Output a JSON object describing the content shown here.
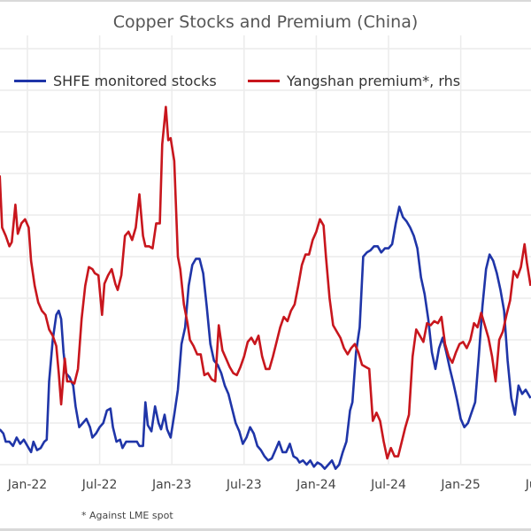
{
  "chart_data": {
    "type": "line",
    "title": "Copper Stocks and Premium (China)",
    "xlabel": "",
    "ylabel": "",
    "y2label": "",
    "y_tick_labels_visible": false,
    "y_units_note": "No y-axis tick labels shown; values are expressed in gridline units (0 = bottom gridline, 10 = top gridline).",
    "ylim": [
      0,
      10
    ],
    "y2lim": [
      0,
      10
    ],
    "x_unit": "months since Jan-2022",
    "xlim": [
      -2.3,
      41.8
    ],
    "x_ticks": [
      {
        "month": 0,
        "label": "Jan-22"
      },
      {
        "month": 6,
        "label": "Jul-22"
      },
      {
        "month": 12,
        "label": "Jan-23"
      },
      {
        "month": 18,
        "label": "Jul-23"
      },
      {
        "month": 24,
        "label": "Jan-24"
      },
      {
        "month": 30,
        "label": "Jul-24"
      },
      {
        "month": 36,
        "label": "Jan-25"
      },
      {
        "month": 42,
        "label": "Jul"
      }
    ],
    "grid": true,
    "legend_position": "top",
    "series": [
      {
        "name": "SHFE monitored stocks",
        "axis": "left",
        "color": "#1f35a8",
        "points": [
          [
            -2.3,
            0.85
          ],
          [
            -2.0,
            0.75
          ],
          [
            -1.8,
            0.55
          ],
          [
            -1.5,
            0.55
          ],
          [
            -1.2,
            0.45
          ],
          [
            -0.9,
            0.65
          ],
          [
            -0.6,
            0.5
          ],
          [
            -0.3,
            0.6
          ],
          [
            0.0,
            0.45
          ],
          [
            0.3,
            0.3
          ],
          [
            0.5,
            0.55
          ],
          [
            0.8,
            0.35
          ],
          [
            1.1,
            0.4
          ],
          [
            1.4,
            0.55
          ],
          [
            1.6,
            0.6
          ],
          [
            1.8,
            2.0
          ],
          [
            2.1,
            3.0
          ],
          [
            2.4,
            3.6
          ],
          [
            2.6,
            3.7
          ],
          [
            2.8,
            3.5
          ],
          [
            3.0,
            2.7
          ],
          [
            3.2,
            2.2
          ],
          [
            3.5,
            2.1
          ],
          [
            3.8,
            1.9
          ],
          [
            4.0,
            1.4
          ],
          [
            4.3,
            0.9
          ],
          [
            4.6,
            1.0
          ],
          [
            4.9,
            1.1
          ],
          [
            5.2,
            0.9
          ],
          [
            5.4,
            0.65
          ],
          [
            5.7,
            0.75
          ],
          [
            6.0,
            0.9
          ],
          [
            6.3,
            1.0
          ],
          [
            6.6,
            1.3
          ],
          [
            6.9,
            1.35
          ],
          [
            7.1,
            0.9
          ],
          [
            7.4,
            0.55
          ],
          [
            7.7,
            0.6
          ],
          [
            7.9,
            0.4
          ],
          [
            8.2,
            0.55
          ],
          [
            8.5,
            0.55
          ],
          [
            8.8,
            0.55
          ],
          [
            9.1,
            0.55
          ],
          [
            9.3,
            0.45
          ],
          [
            9.6,
            0.45
          ],
          [
            9.8,
            1.5
          ],
          [
            10.0,
            0.95
          ],
          [
            10.3,
            0.8
          ],
          [
            10.6,
            1.4
          ],
          [
            10.9,
            1.0
          ],
          [
            11.1,
            0.85
          ],
          [
            11.4,
            1.2
          ],
          [
            11.6,
            0.85
          ],
          [
            11.9,
            0.65
          ],
          [
            12.2,
            1.2
          ],
          [
            12.5,
            1.8
          ],
          [
            12.8,
            2.9
          ],
          [
            13.1,
            3.3
          ],
          [
            13.4,
            4.3
          ],
          [
            13.7,
            4.8
          ],
          [
            14.0,
            4.95
          ],
          [
            14.3,
            4.95
          ],
          [
            14.6,
            4.6
          ],
          [
            14.9,
            3.8
          ],
          [
            15.2,
            2.9
          ],
          [
            15.5,
            2.5
          ],
          [
            15.8,
            2.4
          ],
          [
            16.1,
            2.2
          ],
          [
            16.4,
            1.9
          ],
          [
            16.7,
            1.7
          ],
          [
            17.0,
            1.35
          ],
          [
            17.3,
            1.0
          ],
          [
            17.6,
            0.8
          ],
          [
            17.9,
            0.5
          ],
          [
            18.2,
            0.65
          ],
          [
            18.5,
            0.9
          ],
          [
            18.8,
            0.75
          ],
          [
            19.1,
            0.45
          ],
          [
            19.4,
            0.35
          ],
          [
            19.7,
            0.2
          ],
          [
            20.0,
            0.1
          ],
          [
            20.3,
            0.15
          ],
          [
            20.6,
            0.35
          ],
          [
            20.9,
            0.55
          ],
          [
            21.2,
            0.3
          ],
          [
            21.5,
            0.3
          ],
          [
            21.8,
            0.5
          ],
          [
            22.1,
            0.2
          ],
          [
            22.4,
            0.15
          ],
          [
            22.6,
            0.05
          ],
          [
            22.9,
            0.1
          ],
          [
            23.2,
            0.0
          ],
          [
            23.5,
            0.1
          ],
          [
            23.8,
            -0.05
          ],
          [
            24.1,
            0.05
          ],
          [
            24.4,
            0.0
          ],
          [
            24.7,
            -0.1
          ],
          [
            25.0,
            0.0
          ],
          [
            25.3,
            0.1
          ],
          [
            25.6,
            -0.1
          ],
          [
            25.9,
            0.0
          ],
          [
            26.2,
            0.3
          ],
          [
            26.5,
            0.55
          ],
          [
            26.8,
            1.3
          ],
          [
            27.0,
            1.5
          ],
          [
            27.3,
            2.7
          ],
          [
            27.6,
            3.3
          ],
          [
            27.9,
            5.0
          ],
          [
            28.2,
            5.1
          ],
          [
            28.5,
            5.15
          ],
          [
            28.8,
            5.25
          ],
          [
            29.1,
            5.25
          ],
          [
            29.4,
            5.1
          ],
          [
            29.7,
            5.2
          ],
          [
            30.0,
            5.2
          ],
          [
            30.3,
            5.3
          ],
          [
            30.6,
            5.8
          ],
          [
            30.9,
            6.2
          ],
          [
            31.2,
            5.95
          ],
          [
            31.5,
            5.85
          ],
          [
            31.8,
            5.7
          ],
          [
            32.1,
            5.5
          ],
          [
            32.4,
            5.2
          ],
          [
            32.7,
            4.5
          ],
          [
            33.0,
            4.1
          ],
          [
            33.3,
            3.5
          ],
          [
            33.6,
            2.7
          ],
          [
            33.9,
            2.3
          ],
          [
            34.2,
            2.8
          ],
          [
            34.5,
            3.05
          ],
          [
            34.8,
            2.7
          ],
          [
            35.1,
            2.3
          ],
          [
            35.4,
            1.95
          ],
          [
            35.7,
            1.55
          ],
          [
            36.0,
            1.1
          ],
          [
            36.3,
            0.9
          ],
          [
            36.6,
            1.0
          ],
          [
            36.9,
            1.25
          ],
          [
            37.2,
            1.5
          ],
          [
            37.5,
            2.6
          ],
          [
            37.8,
            3.8
          ],
          [
            38.1,
            4.7
          ],
          [
            38.4,
            5.05
          ],
          [
            38.7,
            4.9
          ],
          [
            39.0,
            4.6
          ],
          [
            39.3,
            4.2
          ],
          [
            39.6,
            3.7
          ],
          [
            39.9,
            2.5
          ],
          [
            40.2,
            1.6
          ],
          [
            40.5,
            1.2
          ],
          [
            40.8,
            1.9
          ],
          [
            41.1,
            1.7
          ],
          [
            41.4,
            1.8
          ],
          [
            41.8,
            1.6
          ]
        ]
      },
      {
        "name": "Yangshan premium*, rhs",
        "axis": "right",
        "color": "#c8161d",
        "points": [
          [
            -2.3,
            6.95
          ],
          [
            -2.1,
            5.7
          ],
          [
            -1.8,
            5.5
          ],
          [
            -1.5,
            5.25
          ],
          [
            -1.3,
            5.35
          ],
          [
            -1.0,
            6.25
          ],
          [
            -0.8,
            5.55
          ],
          [
            -0.5,
            5.8
          ],
          [
            -0.2,
            5.9
          ],
          [
            0.1,
            5.7
          ],
          [
            0.3,
            4.9
          ],
          [
            0.6,
            4.3
          ],
          [
            0.9,
            3.9
          ],
          [
            1.2,
            3.7
          ],
          [
            1.5,
            3.6
          ],
          [
            1.8,
            3.25
          ],
          [
            2.1,
            3.1
          ],
          [
            2.4,
            2.85
          ],
          [
            2.6,
            2.2
          ],
          [
            2.8,
            1.45
          ],
          [
            3.1,
            2.55
          ],
          [
            3.3,
            2.0
          ],
          [
            3.6,
            2.0
          ],
          [
            3.9,
            1.95
          ],
          [
            4.2,
            2.3
          ],
          [
            4.5,
            3.5
          ],
          [
            4.8,
            4.3
          ],
          [
            5.1,
            4.75
          ],
          [
            5.4,
            4.7
          ],
          [
            5.6,
            4.6
          ],
          [
            5.9,
            4.55
          ],
          [
            6.2,
            3.6
          ],
          [
            6.4,
            4.35
          ],
          [
            6.7,
            4.55
          ],
          [
            7.0,
            4.7
          ],
          [
            7.3,
            4.35
          ],
          [
            7.5,
            4.2
          ],
          [
            7.8,
            4.55
          ],
          [
            8.1,
            5.5
          ],
          [
            8.4,
            5.6
          ],
          [
            8.7,
            5.4
          ],
          [
            9.0,
            5.7
          ],
          [
            9.3,
            6.5
          ],
          [
            9.6,
            5.5
          ],
          [
            9.8,
            5.25
          ],
          [
            10.1,
            5.25
          ],
          [
            10.4,
            5.2
          ],
          [
            10.7,
            5.8
          ],
          [
            11.0,
            5.8
          ],
          [
            11.2,
            7.7
          ],
          [
            11.5,
            8.6
          ],
          [
            11.7,
            7.8
          ],
          [
            11.9,
            7.85
          ],
          [
            12.2,
            7.3
          ],
          [
            12.5,
            5.0
          ],
          [
            12.7,
            4.7
          ],
          [
            13.0,
            3.85
          ],
          [
            13.3,
            3.4
          ],
          [
            13.5,
            3.0
          ],
          [
            13.8,
            2.85
          ],
          [
            14.1,
            2.65
          ],
          [
            14.4,
            2.65
          ],
          [
            14.7,
            2.15
          ],
          [
            15.0,
            2.2
          ],
          [
            15.3,
            2.05
          ],
          [
            15.6,
            2.0
          ],
          [
            15.9,
            3.35
          ],
          [
            16.2,
            2.75
          ],
          [
            16.5,
            2.55
          ],
          [
            16.8,
            2.35
          ],
          [
            17.1,
            2.2
          ],
          [
            17.4,
            2.15
          ],
          [
            17.7,
            2.35
          ],
          [
            18.0,
            2.6
          ],
          [
            18.3,
            2.95
          ],
          [
            18.6,
            3.05
          ],
          [
            18.9,
            2.9
          ],
          [
            19.2,
            3.1
          ],
          [
            19.5,
            2.6
          ],
          [
            19.8,
            2.3
          ],
          [
            20.1,
            2.3
          ],
          [
            20.4,
            2.6
          ],
          [
            20.7,
            2.95
          ],
          [
            21.0,
            3.3
          ],
          [
            21.3,
            3.55
          ],
          [
            21.6,
            3.45
          ],
          [
            21.9,
            3.7
          ],
          [
            22.2,
            3.85
          ],
          [
            22.5,
            4.3
          ],
          [
            22.8,
            4.8
          ],
          [
            23.1,
            5.05
          ],
          [
            23.4,
            5.05
          ],
          [
            23.7,
            5.4
          ],
          [
            24.0,
            5.6
          ],
          [
            24.3,
            5.9
          ],
          [
            24.6,
            5.75
          ],
          [
            24.8,
            5.0
          ],
          [
            25.1,
            4.0
          ],
          [
            25.4,
            3.35
          ],
          [
            25.7,
            3.2
          ],
          [
            26.0,
            3.05
          ],
          [
            26.3,
            2.8
          ],
          [
            26.6,
            2.65
          ],
          [
            26.9,
            2.8
          ],
          [
            27.2,
            2.9
          ],
          [
            27.5,
            2.7
          ],
          [
            27.8,
            2.4
          ],
          [
            28.1,
            2.35
          ],
          [
            28.4,
            2.3
          ],
          [
            28.7,
            1.05
          ],
          [
            29.0,
            1.25
          ],
          [
            29.3,
            1.05
          ],
          [
            29.6,
            0.55
          ],
          [
            29.9,
            0.15
          ],
          [
            30.2,
            0.4
          ],
          [
            30.5,
            0.2
          ],
          [
            30.8,
            0.2
          ],
          [
            31.1,
            0.55
          ],
          [
            31.4,
            0.9
          ],
          [
            31.7,
            1.2
          ],
          [
            32.0,
            2.6
          ],
          [
            32.3,
            3.25
          ],
          [
            32.6,
            3.1
          ],
          [
            32.9,
            2.95
          ],
          [
            33.2,
            3.4
          ],
          [
            33.5,
            3.35
          ],
          [
            33.8,
            3.45
          ],
          [
            34.1,
            3.4
          ],
          [
            34.4,
            3.55
          ],
          [
            34.7,
            2.9
          ],
          [
            35.0,
            2.6
          ],
          [
            35.3,
            2.45
          ],
          [
            35.6,
            2.7
          ],
          [
            35.9,
            2.9
          ],
          [
            36.2,
            2.95
          ],
          [
            36.5,
            2.8
          ],
          [
            36.8,
            3.0
          ],
          [
            37.1,
            3.4
          ],
          [
            37.4,
            3.3
          ],
          [
            37.7,
            3.65
          ],
          [
            38.0,
            3.35
          ],
          [
            38.3,
            3.05
          ],
          [
            38.6,
            2.6
          ],
          [
            38.9,
            2.0
          ],
          [
            39.2,
            3.0
          ],
          [
            39.5,
            3.2
          ],
          [
            39.8,
            3.6
          ],
          [
            40.1,
            3.95
          ],
          [
            40.4,
            4.65
          ],
          [
            40.7,
            4.5
          ],
          [
            41.0,
            4.75
          ],
          [
            41.3,
            5.3
          ],
          [
            41.5,
            4.85
          ],
          [
            41.8,
            4.3
          ]
        ]
      }
    ],
    "footnote": "* Against LME spot"
  },
  "legend": [
    {
      "label": "SHFE monitored stocks",
      "color": "#1f35a8"
    },
    {
      "label": "Yangshan premium*, rhs",
      "color": "#c8161d"
    }
  ]
}
